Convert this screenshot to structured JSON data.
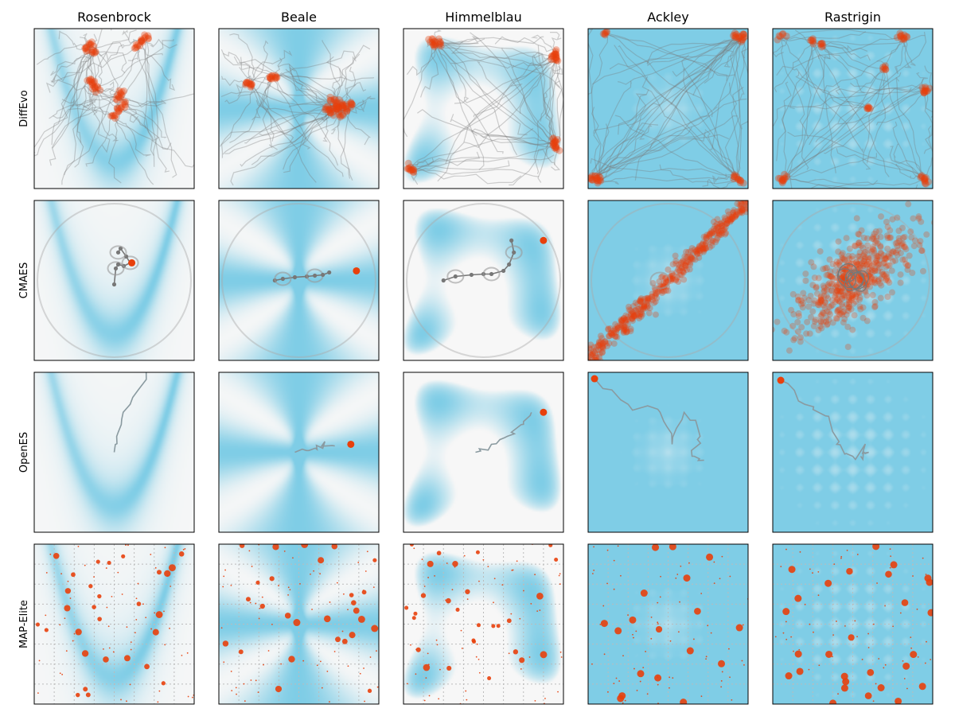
{
  "chart_data": {
    "type": "scatter",
    "columns": [
      "Rosenbrock",
      "Beale",
      "Himmelblau",
      "Ackley",
      "Rastrigin"
    ],
    "rows": [
      "DiffEvo",
      "CMAES",
      "OpenES",
      "MAP-Elite"
    ],
    "domain": [
      -1,
      1
    ],
    "grid": false,
    "legend": "none",
    "colors": {
      "landscape_high": "#7fcde6",
      "landscape_low": "#f7f7f7",
      "trajectory": "#777777",
      "population": "#e8400c",
      "frame": "#000000",
      "map_elite_grid": "#bbbbbb"
    },
    "panels": {
      "DiffEvo": {
        "Rosenbrock": {
          "points": [
            [
              -0.3,
              0.8
            ],
            [
              -0.25,
              0.7
            ],
            [
              -0.35,
              0.75
            ],
            [
              0.35,
              0.85
            ],
            [
              0.4,
              0.9
            ],
            [
              0.3,
              0.78
            ],
            [
              -0.28,
              0.3
            ],
            [
              -0.22,
              0.25
            ],
            [
              -0.3,
              0.35
            ],
            [
              0.1,
              0.2
            ],
            [
              0.05,
              0.15
            ],
            [
              0.12,
              0.05
            ],
            [
              0.0,
              -0.1
            ],
            [
              0.05,
              0.0
            ]
          ]
        },
        "Beale": {
          "points": [
            [
              0.5,
              0.02
            ],
            [
              0.45,
              0.0
            ],
            [
              0.55,
              0.05
            ],
            [
              0.4,
              -0.05
            ],
            [
              0.6,
              0.0
            ],
            [
              0.48,
              0.08
            ],
            [
              0.52,
              -0.08
            ],
            [
              0.35,
              0.0
            ],
            [
              0.65,
              0.05
            ],
            [
              0.42,
              0.1
            ],
            [
              -0.3,
              0.4
            ],
            [
              -0.35,
              0.38
            ],
            [
              -0.6,
              0.3
            ],
            [
              -0.65,
              0.32
            ]
          ]
        },
        "Himmelblau": {
          "points": [
            [
              0.9,
              0.7
            ],
            [
              0.92,
              0.6
            ],
            [
              0.88,
              0.65
            ],
            [
              0.9,
              -0.4
            ],
            [
              0.92,
              -0.5
            ],
            [
              0.88,
              -0.45
            ],
            [
              -0.93,
              -0.75
            ],
            [
              -0.9,
              -0.78
            ],
            [
              -0.6,
              0.8
            ],
            [
              -0.65,
              0.85
            ],
            [
              -0.55,
              0.82
            ]
          ]
        },
        "Ackley": {
          "points": [
            [
              0.95,
              0.9
            ],
            [
              0.9,
              0.88
            ],
            [
              0.85,
              0.92
            ],
            [
              -0.9,
              -0.85
            ],
            [
              -0.95,
              -0.88
            ],
            [
              -0.85,
              -0.9
            ],
            [
              -0.8,
              0.95
            ],
            [
              0.9,
              -0.9
            ],
            [
              0.85,
              -0.85
            ]
          ]
        },
        "Rastrigin": {
          "points": [
            [
              0.6,
              0.9
            ],
            [
              0.65,
              0.88
            ],
            [
              -0.9,
              0.9
            ],
            [
              0.9,
              0.2
            ],
            [
              0.92,
              0.25
            ],
            [
              0.9,
              -0.9
            ],
            [
              0.88,
              -0.85
            ],
            [
              -0.9,
              -0.9
            ],
            [
              -0.85,
              -0.88
            ],
            [
              0.2,
              0.0
            ],
            [
              -0.4,
              0.8
            ],
            [
              -0.5,
              0.85
            ],
            [
              0.4,
              0.5
            ]
          ]
        }
      },
      "CMAES": {
        "Rosenbrock": {
          "trajectory": [
            [
              0.0,
              -0.05
            ],
            [
              0.02,
              0.15
            ],
            [
              0.05,
              0.2
            ],
            [
              0.12,
              0.18
            ],
            [
              0.2,
              0.22
            ],
            [
              0.15,
              0.3
            ],
            [
              0.08,
              0.4
            ],
            [
              0.05,
              0.35
            ]
          ],
          "final": [
            0.22,
            0.22
          ]
        },
        "Beale": {
          "trajectory": [
            [
              -0.3,
              0.0
            ],
            [
              -0.2,
              0.02
            ],
            [
              -0.05,
              0.04
            ],
            [
              0.1,
              0.05
            ],
            [
              0.2,
              0.06
            ],
            [
              0.3,
              0.07
            ],
            [
              0.38,
              0.1
            ]
          ],
          "final": [
            0.72,
            0.12
          ]
        },
        "Himmelblau": {
          "trajectory": [
            [
              -0.5,
              0.0
            ],
            [
              -0.35,
              0.05
            ],
            [
              -0.15,
              0.07
            ],
            [
              0.0,
              0.08
            ],
            [
              0.1,
              0.08
            ],
            [
              0.25,
              0.12
            ],
            [
              0.32,
              0.2
            ],
            [
              0.38,
              0.35
            ],
            [
              0.35,
              0.5
            ]
          ],
          "final": [
            0.75,
            0.5
          ]
        },
        "Ackley": {
          "population_axis": {
            "from": [
              -1.0,
              -1.0
            ],
            "to": [
              1.0,
              1.0
            ]
          }
        },
        "Rastrigin": {
          "population_center": [
            0.0,
            0.0
          ]
        }
      },
      "OpenES": {
        "Rosenbrock": {
          "trajectory": [
            [
              0.0,
              -0.0
            ],
            [
              0.05,
              0.25
            ],
            [
              0.2,
              0.6
            ],
            [
              0.4,
              1.0
            ]
          ]
        },
        "Beale": {
          "trajectory": [
            [
              -0.05,
              0.0
            ],
            [
              0.2,
              0.05
            ],
            [
              0.3,
              0.05
            ],
            [
              0.45,
              0.08
            ]
          ],
          "final": [
            0.65,
            0.1
          ]
        },
        "Himmelblau": {
          "trajectory": [
            [
              -0.1,
              0.0
            ],
            [
              0.1,
              0.1
            ],
            [
              0.3,
              0.2
            ],
            [
              0.5,
              0.35
            ],
            [
              0.6,
              0.5
            ]
          ],
          "final": [
            0.75,
            0.5
          ]
        },
        "Ackley": {
          "trajectory": [
            [
              -0.9,
              0.9
            ],
            [
              -0.5,
              0.6
            ],
            [
              -0.1,
              0.5
            ],
            [
              0.05,
              0.1
            ],
            [
              0.2,
              0.5
            ],
            [
              0.4,
              0.2
            ],
            [
              0.3,
              -0.05
            ],
            [
              0.45,
              -0.1
            ]
          ],
          "final": [
            -0.92,
            0.92
          ]
        },
        "Rastrigin": {
          "trajectory": [
            [
              -0.9,
              0.9
            ],
            [
              -0.6,
              0.6
            ],
            [
              -0.3,
              0.45
            ],
            [
              -0.2,
              0.1
            ],
            [
              0.0,
              -0.05
            ],
            [
              0.2,
              0.0
            ],
            [
              0.1,
              -0.05
            ]
          ],
          "final": [
            -0.9,
            0.9
          ]
        }
      },
      "MAP-Elite": {
        "Rosenbrock": {
          "grid_divisions": 8
        },
        "Beale": {
          "grid_divisions": 8
        },
        "Himmelblau": {
          "grid_divisions": 8
        },
        "Ackley": {
          "grid_divisions": 8
        },
        "Rastrigin": {
          "grid_divisions": 8
        }
      }
    }
  }
}
